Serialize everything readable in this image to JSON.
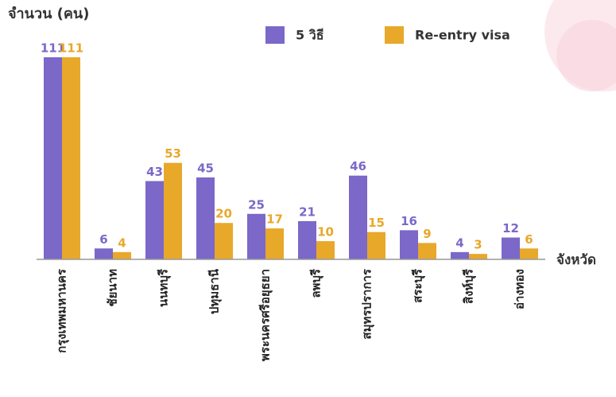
{
  "chart_data": {
    "type": "bar",
    "y_label": "จำนวน (คน)",
    "x_label": "จังหวัด",
    "categories": [
      "กรุงเทพมหานคร",
      "ชัยนาท",
      "นนทบุรี",
      "ปทุมธานี",
      "พระนครศรีอยุธยา",
      "ลพบุรี",
      "สมุทรปราการ",
      "สระบุรี",
      "สิงห์บุรี",
      "อ่างทอง"
    ],
    "series": [
      {
        "name": "5 วิธี",
        "color": "#7b68c8",
        "values": [
          111,
          6,
          43,
          45,
          25,
          21,
          46,
          16,
          4,
          12
        ]
      },
      {
        "name": "Re-entry visa",
        "color": "#e8a82a",
        "values": [
          111,
          4,
          53,
          20,
          17,
          10,
          15,
          9,
          3,
          6
        ]
      }
    ],
    "ylim": [
      0,
      111
    ]
  }
}
